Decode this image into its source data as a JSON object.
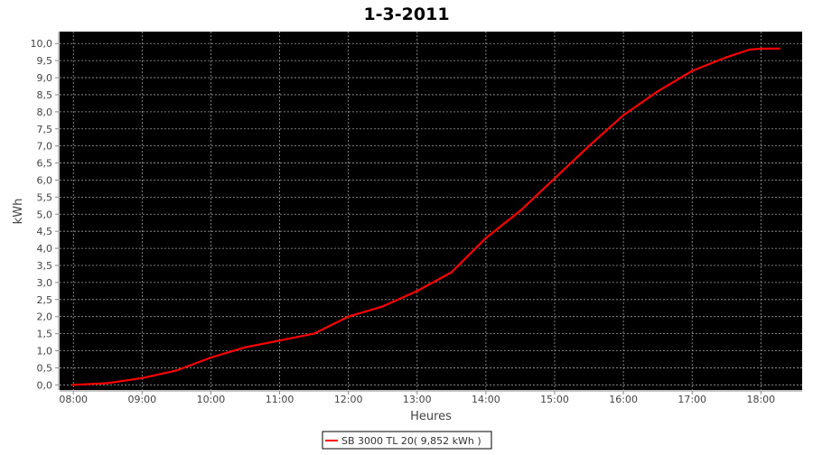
{
  "chart_data": {
    "type": "line",
    "title": "1-3-2011",
    "xlabel": "Heures",
    "ylabel": "kWh",
    "xlim": [
      "07:48",
      "18:36"
    ],
    "ylim": [
      -0.15,
      10.35
    ],
    "x_ticks": [
      "08:00",
      "09:00",
      "10:00",
      "11:00",
      "12:00",
      "13:00",
      "14:00",
      "15:00",
      "16:00",
      "17:00",
      "18:00"
    ],
    "y_ticks": [
      "0,0",
      "0,5",
      "1,0",
      "1,5",
      "2,0",
      "2,5",
      "3,0",
      "3,5",
      "4,0",
      "4,5",
      "5,0",
      "5,5",
      "6,0",
      "6,5",
      "7,0",
      "7,5",
      "8,0",
      "8,5",
      "9,0",
      "9,5",
      "10,0"
    ],
    "grid": true,
    "background": "#000000",
    "grid_color": "#a0a0a0",
    "legend_position": "bottom",
    "series": [
      {
        "name": "SB 3000 TL 20( 9,852 kWh )",
        "color": "#ff0000",
        "x": [
          "08:00",
          "08:30",
          "09:00",
          "09:30",
          "10:00",
          "10:30",
          "11:00",
          "11:30",
          "12:00",
          "12:30",
          "13:00",
          "13:30",
          "14:00",
          "14:30",
          "15:00",
          "15:30",
          "16:00",
          "16:30",
          "17:00",
          "17:30",
          "17:50",
          "18:00",
          "18:16"
        ],
        "y": [
          0.0,
          0.05,
          0.2,
          0.42,
          0.8,
          1.1,
          1.3,
          1.5,
          2.0,
          2.3,
          2.75,
          3.3,
          4.3,
          5.1,
          6.05,
          7.0,
          7.9,
          8.6,
          9.2,
          9.6,
          9.82,
          9.85,
          9.852
        ]
      }
    ]
  }
}
